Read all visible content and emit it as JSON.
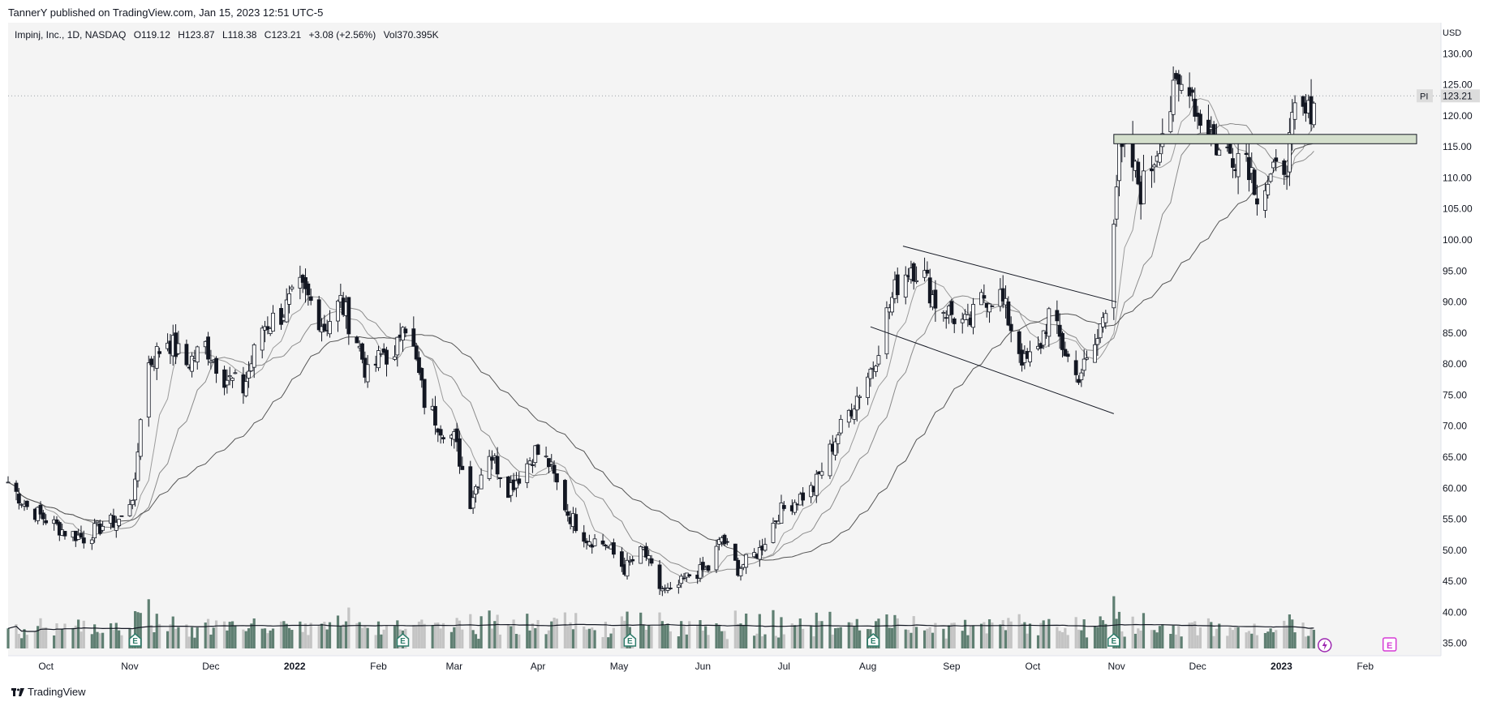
{
  "header": {
    "published": "TannerY published on TradingView.com, Jan 15, 2023 12:51 UTC-5"
  },
  "legend": {
    "symbol": "Impinj, Inc., 1D, NASDAQ",
    "open": "O119.12",
    "high": "H123.87",
    "low": "L118.38",
    "close": "C123.21",
    "change": "+3.08 (+2.56%)",
    "volume": "Vol370.395K"
  },
  "price_tag": {
    "ticker": "PI",
    "value": "123.21"
  },
  "footer": {
    "brand": "TradingView"
  },
  "colors": {
    "up": "#ffffff",
    "down": "#131722",
    "wick": "#131722",
    "accent_down": "#a7825c",
    "volume_up": "#5f7f72",
    "volume_down": "#c4c4c4",
    "zone": "#d4dfcc",
    "plot_bg": "#f4f4f4"
  },
  "chart_data": {
    "type": "candlestick",
    "y_axis_label": "USD",
    "y_ticks": [
      35,
      40,
      45,
      50,
      55,
      60,
      65,
      70,
      75,
      80,
      85,
      90,
      95,
      100,
      105,
      110,
      115,
      120,
      125,
      130
    ],
    "y_tick_labels": [
      "35.00",
      "40.00",
      "45.00",
      "50.00",
      "55.00",
      "60.00",
      "65.00",
      "70.00",
      "75.00",
      "80.00",
      "85.00",
      "90.00",
      "95.00",
      "100.00",
      "105.00",
      "110.00",
      "115.00",
      "120.00",
      "125.00",
      "130.00"
    ],
    "ylim": [
      33,
      135
    ],
    "x_labels": [
      "Oct",
      "Nov",
      "Dec",
      "2022",
      "Feb",
      "Mar",
      "Apr",
      "May",
      "Jun",
      "Jul",
      "Aug",
      "Sep",
      "Oct",
      "Nov",
      "Dec",
      "2023",
      "Feb"
    ],
    "x_label_dates": [
      "2021-10-01",
      "2021-11-01",
      "2021-12-01",
      "2022-01-01",
      "2022-02-01",
      "2022-03-01",
      "2022-04-01",
      "2022-05-01",
      "2022-06-01",
      "2022-07-01",
      "2022-08-01",
      "2022-09-01",
      "2022-10-01",
      "2022-11-01",
      "2022-12-01",
      "2023-01-01",
      "2023-02-01"
    ],
    "xlim": [
      "2021-09-17",
      "2023-03-01"
    ],
    "price_path": [
      [
        "2021-09-17",
        61
      ],
      [
        "2021-09-24",
        57
      ],
      [
        "2021-10-01",
        55
      ],
      [
        "2021-10-08",
        53
      ],
      [
        "2021-10-15",
        52
      ],
      [
        "2021-10-22",
        54
      ],
      [
        "2021-10-29",
        55
      ],
      [
        "2021-11-03",
        60
      ],
      [
        "2021-11-05",
        72
      ],
      [
        "2021-11-08",
        80
      ],
      [
        "2021-11-15",
        84
      ],
      [
        "2021-11-22",
        80
      ],
      [
        "2021-11-29",
        83
      ],
      [
        "2021-12-06",
        78
      ],
      [
        "2021-12-13",
        76
      ],
      [
        "2021-12-20",
        86
      ],
      [
        "2021-12-27",
        88
      ],
      [
        "2022-01-03",
        92
      ],
      [
        "2022-01-07",
        90
      ],
      [
        "2022-01-12",
        86
      ],
      [
        "2022-01-18",
        90
      ],
      [
        "2022-01-24",
        84
      ],
      [
        "2022-01-28",
        78
      ],
      [
        "2022-02-03",
        82
      ],
      [
        "2022-02-07",
        80
      ],
      [
        "2022-02-10",
        88
      ],
      [
        "2022-02-14",
        82
      ],
      [
        "2022-02-18",
        74
      ],
      [
        "2022-02-24",
        70
      ],
      [
        "2022-03-01",
        68
      ],
      [
        "2022-03-07",
        58
      ],
      [
        "2022-03-14",
        66
      ],
      [
        "2022-03-21",
        60
      ],
      [
        "2022-03-25",
        62
      ],
      [
        "2022-03-31",
        66
      ],
      [
        "2022-04-05",
        64
      ],
      [
        "2022-04-12",
        56
      ],
      [
        "2022-04-19",
        52
      ],
      [
        "2022-04-26",
        51
      ],
      [
        "2022-05-03",
        47
      ],
      [
        "2022-05-10",
        50
      ],
      [
        "2022-05-16",
        44
      ],
      [
        "2022-05-20",
        43
      ],
      [
        "2022-05-27",
        46
      ],
      [
        "2022-06-03",
        47
      ],
      [
        "2022-06-08",
        52
      ],
      [
        "2022-06-14",
        47
      ],
      [
        "2022-06-22",
        50
      ],
      [
        "2022-06-29",
        56
      ],
      [
        "2022-07-05",
        58
      ],
      [
        "2022-07-12",
        60
      ],
      [
        "2022-07-20",
        68
      ],
      [
        "2022-07-27",
        74
      ],
      [
        "2022-08-03",
        80
      ],
      [
        "2022-08-08",
        88
      ],
      [
        "2022-08-12",
        93
      ],
      [
        "2022-08-17",
        96
      ],
      [
        "2022-08-22",
        94
      ],
      [
        "2022-08-26",
        90
      ],
      [
        "2022-09-01",
        88
      ],
      [
        "2022-09-07",
        86
      ],
      [
        "2022-09-13",
        91
      ],
      [
        "2022-09-19",
        91
      ],
      [
        "2022-09-23",
        86
      ],
      [
        "2022-09-28",
        80
      ],
      [
        "2022-10-03",
        82
      ],
      [
        "2022-10-07",
        88
      ],
      [
        "2022-10-12",
        83
      ],
      [
        "2022-10-17",
        78
      ],
      [
        "2022-10-21",
        80
      ],
      [
        "2022-10-25",
        84
      ],
      [
        "2022-10-28",
        90
      ],
      [
        "2022-11-02",
        114
      ],
      [
        "2022-11-07",
        112
      ],
      [
        "2022-11-10",
        108
      ],
      [
        "2022-11-14",
        112
      ],
      [
        "2022-11-18",
        118
      ],
      [
        "2022-11-23",
        124
      ],
      [
        "2022-11-28",
        126
      ],
      [
        "2022-12-01",
        120
      ],
      [
        "2022-12-06",
        118
      ],
      [
        "2022-12-09",
        114
      ],
      [
        "2022-12-14",
        114
      ],
      [
        "2022-12-19",
        114
      ],
      [
        "2022-12-23",
        108
      ],
      [
        "2022-12-29",
        110
      ],
      [
        "2023-01-03",
        113
      ],
      [
        "2023-01-06",
        120
      ],
      [
        "2023-01-11",
        120
      ],
      [
        "2023-01-13",
        123.21
      ]
    ],
    "trend_lines": [
      {
        "from": [
          "2022-08-14",
          99
        ],
        "to": [
          "2022-11-01",
          90
        ]
      },
      {
        "from": [
          "2022-08-02",
          86
        ],
        "to": [
          "2022-10-31",
          72
        ]
      }
    ],
    "zone": {
      "from": "2022-10-31",
      "to": "2023-02-20",
      "low": 115.5,
      "high": 117
    }
  }
}
